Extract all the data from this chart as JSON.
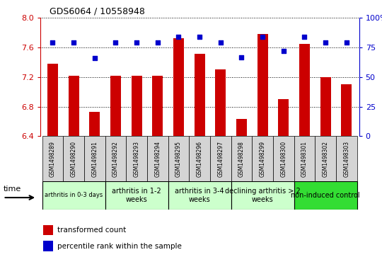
{
  "title": "GDS6064 / 10558948",
  "samples": [
    "GSM1498289",
    "GSM1498290",
    "GSM1498291",
    "GSM1498292",
    "GSM1498293",
    "GSM1498294",
    "GSM1498295",
    "GSM1498296",
    "GSM1498297",
    "GSM1498298",
    "GSM1498299",
    "GSM1498300",
    "GSM1498301",
    "GSM1498302",
    "GSM1498303"
  ],
  "transformed_count": [
    7.38,
    7.22,
    6.73,
    7.22,
    7.22,
    7.22,
    7.73,
    7.52,
    7.3,
    6.63,
    7.78,
    6.9,
    7.65,
    7.2,
    7.1
  ],
  "percentile_rank": [
    79,
    79,
    66,
    79,
    79,
    79,
    84,
    84,
    79,
    67,
    84,
    72,
    84,
    79,
    79
  ],
  "bar_color": "#cc0000",
  "dot_color": "#0000cc",
  "ylim_left": [
    6.4,
    8.0
  ],
  "ylim_right": [
    0,
    100
  ],
  "yticks_left": [
    6.4,
    6.8,
    7.2,
    7.6,
    8.0
  ],
  "yticks_right": [
    0,
    25,
    50,
    75,
    100
  ],
  "groups": [
    {
      "label": "arthritis in 0-3 days",
      "start": 0,
      "end": 3,
      "color": "#ccffcc"
    },
    {
      "label": "arthritis in 1-2\nweeks",
      "start": 3,
      "end": 6,
      "color": "#ccffcc"
    },
    {
      "label": "arthritis in 3-4\nweeks",
      "start": 6,
      "end": 9,
      "color": "#ccffcc"
    },
    {
      "label": "declining arthritis > 2\nweeks",
      "start": 9,
      "end": 12,
      "color": "#ccffcc"
    },
    {
      "label": "non-induced control",
      "start": 12,
      "end": 15,
      "color": "#33dd33"
    }
  ],
  "legend_red": "transformed count",
  "legend_blue": "percentile rank within the sample",
  "bg_color": "#ffffff",
  "bar_width": 0.5,
  "dot_size": 25
}
